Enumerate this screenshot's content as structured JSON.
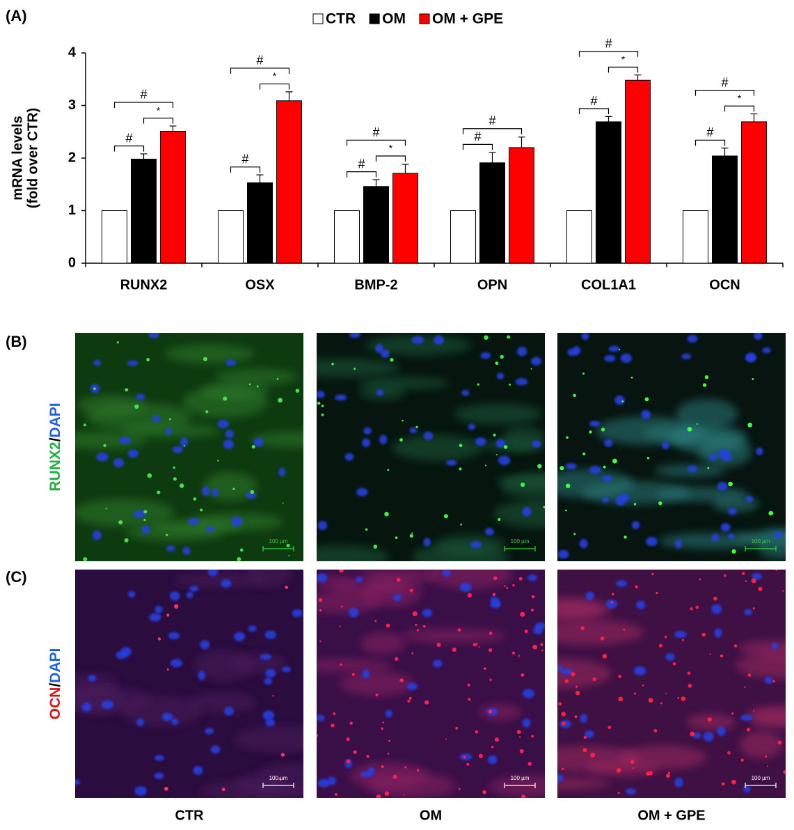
{
  "panel_labels": [
    "(A)",
    "(B)",
    "(C)"
  ],
  "chart_data": {
    "type": "bar",
    "ylabel": [
      "mRNA levels",
      "(fold over CTR)"
    ],
    "categories": [
      "RUNX2",
      "OSX",
      "BMP-2",
      "OPN",
      "COL1A1",
      "OCN"
    ],
    "series": [
      {
        "name": "CTR",
        "color": "#ffffff",
        "values": [
          1,
          1,
          1,
          1,
          1,
          1
        ]
      },
      {
        "name": "OM",
        "color": "#000000",
        "values": [
          1.98,
          1.53,
          1.46,
          1.91,
          2.69,
          2.04
        ],
        "errors": [
          0.1,
          0.15,
          0.13,
          0.2,
          0.1,
          0.15
        ]
      },
      {
        "name": "OM + GPE",
        "color": "#ff0000",
        "values": [
          2.51,
          3.09,
          1.71,
          2.2,
          3.48,
          2.69
        ],
        "errors": [
          0.1,
          0.17,
          0.17,
          0.2,
          0.1,
          0.15
        ]
      }
    ],
    "ylim": [
      0,
      4
    ],
    "yticks": [
      0,
      1,
      2,
      3,
      4
    ],
    "significance": [
      {
        "category": 0,
        "pair": [
          0,
          1
        ],
        "label": "#"
      },
      {
        "category": 0,
        "pair": [
          1,
          2
        ],
        "label": "*"
      },
      {
        "category": 0,
        "pair": [
          0,
          2
        ],
        "label": "#"
      },
      {
        "category": 1,
        "pair": [
          0,
          1
        ],
        "label": "#"
      },
      {
        "category": 1,
        "pair": [
          1,
          2
        ],
        "label": "*"
      },
      {
        "category": 1,
        "pair": [
          0,
          2
        ],
        "label": "#"
      },
      {
        "category": 2,
        "pair": [
          0,
          1
        ],
        "label": "#"
      },
      {
        "category": 2,
        "pair": [
          1,
          2
        ],
        "label": "*"
      },
      {
        "category": 2,
        "pair": [
          0,
          2
        ],
        "label": "#"
      },
      {
        "category": 3,
        "pair": [
          0,
          1
        ],
        "label": "#"
      },
      {
        "category": 3,
        "pair": [
          0,
          2
        ],
        "label": "#"
      },
      {
        "category": 4,
        "pair": [
          0,
          1
        ],
        "label": "#"
      },
      {
        "category": 4,
        "pair": [
          1,
          2
        ],
        "label": "*"
      },
      {
        "category": 4,
        "pair": [
          0,
          2
        ],
        "label": "#"
      },
      {
        "category": 5,
        "pair": [
          0,
          1
        ],
        "label": "#"
      },
      {
        "category": 5,
        "pair": [
          1,
          2
        ],
        "label": "*"
      },
      {
        "category": 5,
        "pair": [
          0,
          2
        ],
        "label": "#"
      }
    ]
  },
  "images": {
    "row_labels": [
      [
        "RUNX2",
        "/",
        "DAPI"
      ],
      [
        "OCN",
        "/",
        "DAPI"
      ]
    ],
    "column_labels": [
      "CTR",
      "OM",
      "OM + GPE"
    ],
    "scale_bar": "100 µm"
  }
}
